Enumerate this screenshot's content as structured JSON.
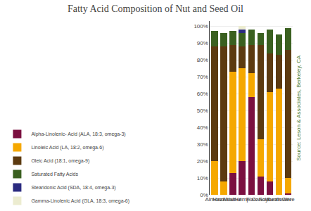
{
  "chart_data": {
    "type": "bar",
    "title": "Fatty Acid Composition of Nut and Seed Oil",
    "categories": [
      "Almond",
      "Hazelnut",
      "Walnut",
      "Hemp",
      "Flax",
      "Canola",
      "Soybean",
      "Sunflower",
      "Olive"
    ],
    "series": [
      {
        "name": "Alpha-Linolenic- Acid (ALA, 18:3, omega-3)",
        "color": "#7B1040",
        "values": [
          0,
          0,
          13,
          20,
          58,
          11,
          8,
          0,
          1
        ]
      },
      {
        "name": "Linoleic Acid (LA, 18:2, omega-6)",
        "color": "#F5A800",
        "values": [
          20,
          8,
          60,
          55,
          14,
          22,
          53,
          63,
          9
        ]
      },
      {
        "name": "Oleic Acid (18:1, omega-9)",
        "color": "#5C3A10",
        "values": [
          68,
          80,
          16,
          13,
          17,
          56,
          23,
          20,
          76
        ]
      },
      {
        "name": "Saturated Fatty Acids",
        "color": "#3A6020",
        "values": [
          9,
          8,
          8,
          8,
          9,
          7,
          14,
          12,
          13
        ]
      },
      {
        "name": "Stearidonic Acid (SDA, 18:4, omega-3)",
        "color": "#2B2B80",
        "values": [
          0,
          0,
          0,
          2,
          0,
          0,
          0,
          0,
          0
        ]
      },
      {
        "name": "Gamma-Linolenic Acid (GLA, 18:3, omega-6)",
        "color": "#ECECD0",
        "values": [
          0,
          0,
          0,
          2,
          0,
          0,
          0,
          0,
          0
        ]
      }
    ],
    "stacked": true,
    "ylim": [
      0,
      103
    ],
    "yticks": [
      {
        "value": 0,
        "label": "0%"
      },
      {
        "value": 10,
        "label": "10%"
      },
      {
        "value": 20,
        "label": "20%"
      },
      {
        "value": 30,
        "label": "30%"
      },
      {
        "value": 40,
        "label": "40%"
      },
      {
        "value": 50,
        "label": "50%"
      },
      {
        "value": 60,
        "label": "60%"
      },
      {
        "value": 70,
        "label": "70%"
      },
      {
        "value": 80,
        "label": "80%"
      },
      {
        "value": 90,
        "label": "90%"
      },
      {
        "value": 100,
        "label": "100%"
      }
    ],
    "grid": true,
    "legend": "lower left",
    "annotations": [
      "Source: Leson & Associates, Berkeley, CA"
    ]
  }
}
